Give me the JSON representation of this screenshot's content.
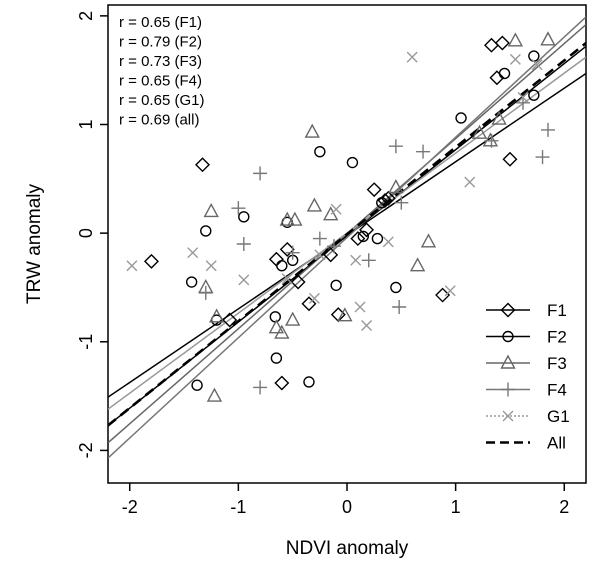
{
  "chart_data": {
    "type": "scatter",
    "title": "",
    "xlabel": "NDVI anomaly",
    "ylabel": "TRW anomaly",
    "xlim": [
      -2.2,
      2.2
    ],
    "ylim": [
      -2.3,
      2.1
    ],
    "xticks": [
      -2,
      -1,
      0,
      1,
      2
    ],
    "yticks": [
      -2,
      -1,
      0,
      1,
      2
    ],
    "tick_labels_x": [
      "-2",
      "-1",
      "0",
      "1",
      "2"
    ],
    "tick_labels_y": [
      "-2",
      "-1",
      "0",
      "1",
      "2"
    ],
    "grid": false,
    "legend_position": "bottom-right",
    "annotations": [
      "r = 0.65 (F1)",
      "r = 0.79 (F2)",
      "r = 0.73 (F3)",
      "r = 0.65 (F4)",
      "r = 0.65 (G1)",
      "r = 0.69 (all)"
    ],
    "series": [
      {
        "name": "F1",
        "marker": "diamond",
        "color": "#000000",
        "line": [
          [
            -2.2,
            -1.51
          ],
          [
            2.2,
            1.47
          ]
        ],
        "points": [
          [
            -1.8,
            -0.26
          ],
          [
            -1.33,
            0.63
          ],
          [
            -1.08,
            -0.8
          ],
          [
            -0.65,
            -0.24
          ],
          [
            -0.6,
            -1.38
          ],
          [
            -0.55,
            -0.15
          ],
          [
            -0.45,
            -0.45
          ],
          [
            -0.35,
            -0.65
          ],
          [
            -0.15,
            -0.2
          ],
          [
            -0.08,
            -0.75
          ],
          [
            0.1,
            -0.05
          ],
          [
            0.18,
            0.03
          ],
          [
            0.25,
            0.4
          ],
          [
            0.35,
            0.3
          ],
          [
            0.38,
            0.32
          ],
          [
            0.88,
            -0.57
          ],
          [
            1.33,
            1.73
          ],
          [
            1.38,
            1.43
          ],
          [
            1.43,
            1.75
          ],
          [
            1.5,
            0.68
          ]
        ]
      },
      {
        "name": "F2",
        "marker": "circle",
        "color": "#000000",
        "line": [
          [
            -2.2,
            -1.77
          ],
          [
            2.2,
            1.72
          ]
        ],
        "points": [
          [
            -1.43,
            -0.45
          ],
          [
            -1.38,
            -1.4
          ],
          [
            -1.3,
            0.02
          ],
          [
            -1.2,
            -0.8
          ],
          [
            -0.95,
            0.15
          ],
          [
            -0.66,
            -0.77
          ],
          [
            -0.65,
            -1.15
          ],
          [
            -0.6,
            -0.3
          ],
          [
            -0.55,
            0.1
          ],
          [
            -0.5,
            -0.25
          ],
          [
            -0.35,
            -1.37
          ],
          [
            -0.25,
            0.75
          ],
          [
            -0.1,
            -0.48
          ],
          [
            0.05,
            0.65
          ],
          [
            0.15,
            -0.03
          ],
          [
            0.28,
            -0.05
          ],
          [
            0.32,
            0.28
          ],
          [
            0.45,
            -0.5
          ],
          [
            1.05,
            1.06
          ],
          [
            1.45,
            1.47
          ],
          [
            1.72,
            1.63
          ],
          [
            1.72,
            1.27
          ]
        ]
      },
      {
        "name": "F3",
        "marker": "triangle",
        "color": "#666666",
        "line": [
          [
            -2.2,
            -1.93
          ],
          [
            2.2,
            1.92
          ]
        ],
        "points": [
          [
            -1.25,
            0.2
          ],
          [
            -1.22,
            -1.5
          ],
          [
            -1.2,
            -0.77
          ],
          [
            -1.3,
            -0.5
          ],
          [
            -0.65,
            -0.87
          ],
          [
            -0.6,
            -0.92
          ],
          [
            -0.55,
            0.12
          ],
          [
            -0.5,
            -0.8
          ],
          [
            -0.48,
            0.12
          ],
          [
            -0.32,
            0.93
          ],
          [
            -0.3,
            0.25
          ],
          [
            -0.15,
            0.17
          ],
          [
            -0.02,
            -0.76
          ],
          [
            0.45,
            0.42
          ],
          [
            0.65,
            -0.3
          ],
          [
            0.75,
            -0.08
          ],
          [
            1.22,
            0.92
          ],
          [
            1.32,
            0.85
          ],
          [
            1.4,
            1.05
          ],
          [
            1.55,
            1.77
          ],
          [
            1.85,
            1.78
          ]
        ]
      },
      {
        "name": "F4",
        "marker": "plus",
        "color": "#777777",
        "line": [
          [
            -2.2,
            -2.07
          ],
          [
            2.2,
            1.99
          ]
        ],
        "points": [
          [
            -1.3,
            -0.55
          ],
          [
            -1.0,
            0.23
          ],
          [
            -0.95,
            -0.1
          ],
          [
            -0.8,
            0.55
          ],
          [
            -0.8,
            -1.42
          ],
          [
            -0.5,
            -0.18
          ],
          [
            -0.25,
            -0.05
          ],
          [
            -0.12,
            -0.12
          ],
          [
            0.2,
            -0.25
          ],
          [
            0.45,
            0.8
          ],
          [
            0.5,
            0.28
          ],
          [
            0.48,
            -0.68
          ],
          [
            0.7,
            0.75
          ],
          [
            1.33,
            0.85
          ],
          [
            1.62,
            1.2
          ],
          [
            1.8,
            0.7
          ],
          [
            1.85,
            0.95
          ]
        ]
      },
      {
        "name": "G1",
        "marker": "cross",
        "color": "#999999",
        "line": [
          [
            -2.2,
            -1.62
          ],
          [
            2.2,
            1.62
          ]
        ],
        "points": [
          [
            -1.98,
            -0.3
          ],
          [
            -1.42,
            -0.18
          ],
          [
            -1.25,
            -0.3
          ],
          [
            -0.95,
            -0.43
          ],
          [
            -0.55,
            -0.42
          ],
          [
            -0.3,
            -0.6
          ],
          [
            -0.25,
            -0.2
          ],
          [
            -0.1,
            0.22
          ],
          [
            0.08,
            -0.25
          ],
          [
            0.12,
            -0.68
          ],
          [
            0.18,
            -0.85
          ],
          [
            0.38,
            -0.08
          ],
          [
            0.6,
            1.62
          ],
          [
            0.95,
            -0.53
          ],
          [
            1.13,
            0.47
          ],
          [
            1.55,
            1.6
          ],
          [
            1.62,
            1.25
          ],
          [
            1.75,
            1.55
          ]
        ]
      },
      {
        "name": "All",
        "marker": "none",
        "color": "#000000",
        "dashed": true,
        "line": [
          [
            -2.2,
            -1.77
          ],
          [
            2.2,
            1.75
          ]
        ],
        "points": []
      }
    ]
  }
}
